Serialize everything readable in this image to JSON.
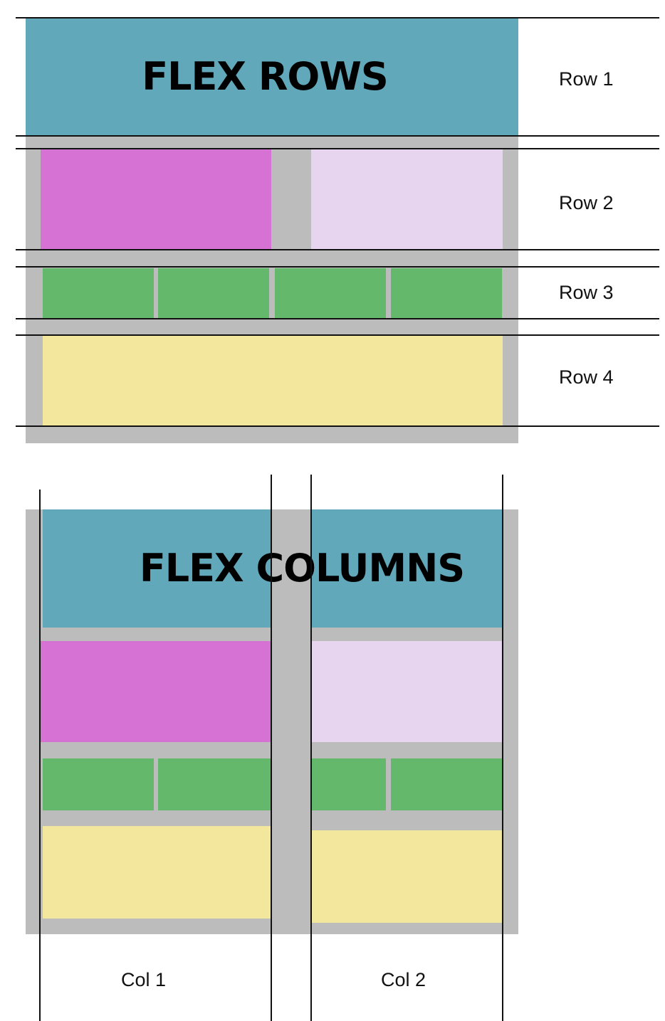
{
  "rows_diagram": {
    "title": "FLEX ROWS",
    "row_labels": [
      "Row 1",
      "Row 2",
      "Row 3",
      "Row 4"
    ]
  },
  "columns_diagram": {
    "title": "FLEX COLUMNS",
    "col_labels": [
      "Col 1",
      "Col 2"
    ]
  },
  "colors": {
    "container": "#bcbcbc",
    "header": "#62a8bb",
    "magenta": "#d572d4",
    "lavender": "#e7d4ef",
    "green": "#64b86c",
    "yellow": "#f3e79d"
  }
}
